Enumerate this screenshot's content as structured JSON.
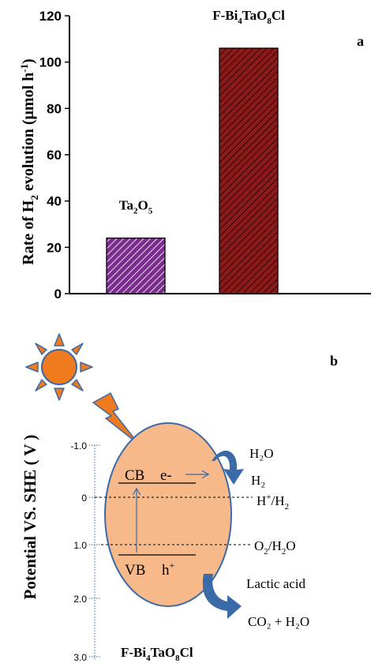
{
  "chart_data": {
    "type": "bar",
    "panel_label": "a",
    "ylabel_parts": {
      "a": "Rate of H",
      "sub": "2",
      "b": " evolution (μmol h",
      "sup": "-1",
      "c": ")"
    },
    "ylim": [
      0,
      120
    ],
    "yticks": [
      "0",
      "20",
      "40",
      "60",
      "80",
      "100",
      "120"
    ],
    "categories": [
      {
        "name_parts": {
          "a": "Ta",
          "s1": "2",
          "b": "O",
          "s2": "5",
          "c": ""
        },
        "value": 24,
        "color": "#7b2d8e"
      },
      {
        "name_parts": {
          "a": "F-Bi",
          "s1": "4",
          "b": "TaO",
          "s2": "8",
          "c": "Cl"
        },
        "value": 106,
        "color": "#8b1a1a"
      }
    ]
  },
  "diagram": {
    "panel_label": "b",
    "ylabel": "Potential VS. SHE ( V )",
    "ticks": [
      "-1.0",
      "0",
      "1.0",
      "2.0",
      "3.0"
    ],
    "cb_label": "CB",
    "electron_label": "e-",
    "vb_label": "VB",
    "hole_label": "h",
    "hole_sup": "+",
    "h2o_label": "H₂O",
    "h2_label": "H₂",
    "hplus_label_a": "H",
    "hplus_sup": "+",
    "hplus_label_b": "/H",
    "hplus_sub": "2",
    "o2_label_a": "O",
    "o2_sub": "2",
    "o2_label_b": "/H",
    "o2_sub2": "2",
    "o2_label_c": "O",
    "lactic_label": "Lactic acid",
    "co2_label": "CO₂ + H₂O",
    "material_parts": {
      "a": "F-Bi",
      "s1": "4",
      "b": "TaO",
      "s2": "8",
      "c": "Cl"
    },
    "ellipse_color": "#f7b98a",
    "sun_color": "#f07a1e",
    "arrow_color": "#3a6aa8"
  }
}
